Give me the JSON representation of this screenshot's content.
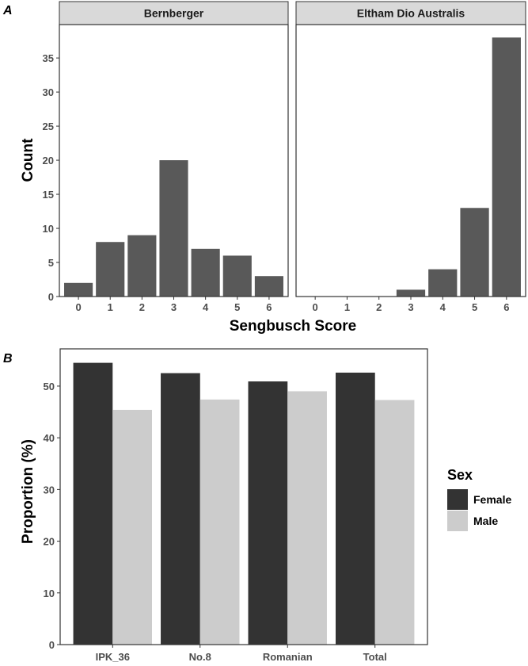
{
  "chart_data": [
    {
      "panel": "A",
      "type": "bar",
      "facets": [
        "Bernberger",
        "Eltham Dio Australis"
      ],
      "categories": [
        "0",
        "1",
        "2",
        "3",
        "4",
        "5",
        "6"
      ],
      "series": [
        {
          "facet": "Bernberger",
          "values": [
            2,
            8,
            9,
            20,
            7,
            6,
            3
          ]
        },
        {
          "facet": "Eltham Dio Australis",
          "values": [
            0,
            0,
            0,
            1,
            4,
            13,
            38
          ]
        }
      ],
      "xlabel": "Sengbusch Score",
      "ylabel": "Count",
      "ylim": [
        0,
        39.9
      ],
      "yticks": [
        0,
        5,
        10,
        15,
        20,
        25,
        30,
        35
      ],
      "bar_color": "#595959",
      "grid": false
    },
    {
      "panel": "B",
      "type": "bar",
      "categories": [
        "IPK_36",
        "No.8",
        "Romanian",
        "Total"
      ],
      "series": [
        {
          "name": "Female",
          "values": [
            54.5,
            52.5,
            50.9,
            52.6
          ],
          "color": "#333333"
        },
        {
          "name": "Male",
          "values": [
            45.4,
            47.4,
            49.0,
            47.3
          ],
          "color": "#cccccc"
        }
      ],
      "xlabel": "",
      "ylabel": "Proportion (%)",
      "ylim": [
        0,
        57.2
      ],
      "yticks": [
        0,
        10,
        20,
        30,
        40,
        50
      ],
      "legend_title": "Sex",
      "legend_position": "right",
      "grid": false
    }
  ]
}
